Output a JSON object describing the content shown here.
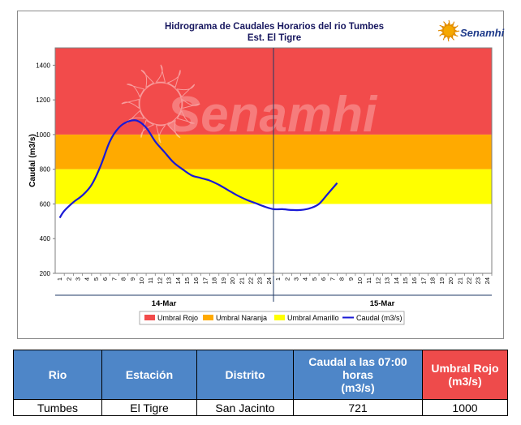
{
  "chart_data": {
    "type": "line",
    "title": "Hidrograma de Caudales Horarios del rio Tumbes",
    "subtitle": "Est. El Tigre",
    "ylabel": "Caudal  (m3/s)",
    "xlabel": "",
    "ylim": [
      200,
      1500
    ],
    "yticks": [
      "200",
      "400",
      "600",
      "800",
      "1000",
      "1200",
      "1400"
    ],
    "x_hour_labels": [
      "1",
      "2",
      "3",
      "4",
      "5",
      "6",
      "7",
      "8",
      "9",
      "10",
      "11",
      "12",
      "13",
      "14",
      "15",
      "16",
      "17",
      "18",
      "19",
      "20",
      "21",
      "22",
      "23",
      "24",
      "1",
      "2",
      "3",
      "4",
      "5",
      "6",
      "7",
      "8",
      "9",
      "10",
      "11",
      "12",
      "13",
      "14",
      "15",
      "16",
      "17",
      "18",
      "19",
      "20",
      "21",
      "22",
      "23",
      "24"
    ],
    "day_labels": [
      "14-Mar",
      "15-Mar"
    ],
    "thresholds": [
      {
        "name": "Umbral Rojo",
        "from": 1000,
        "to": 1500,
        "color": "#f24b4b"
      },
      {
        "name": "Umbral Naranja",
        "from": 800,
        "to": 1000,
        "color": "#ffaa00"
      },
      {
        "name": "Umbral Amarillo",
        "from": 600,
        "to": 800,
        "color": "#ffff00"
      }
    ],
    "series": [
      {
        "name": "Caudal (m3/s)",
        "color": "#1a1ad6",
        "x": [
          0.5,
          1,
          2,
          3,
          4,
          5,
          6,
          7,
          8,
          9,
          10,
          11,
          12,
          13,
          14,
          15,
          16,
          17,
          18,
          19,
          20,
          21,
          22,
          23,
          24,
          25,
          26,
          27,
          28,
          29,
          30,
          31
        ],
        "values": [
          520,
          560,
          610,
          650,
          710,
          820,
          960,
          1040,
          1075,
          1080,
          1040,
          960,
          900,
          840,
          800,
          765,
          750,
          735,
          710,
          680,
          650,
          625,
          605,
          585,
          570,
          570,
          565,
          565,
          575,
          600,
          660,
          721
        ]
      }
    ],
    "legend_entries": [
      "Umbral Rojo",
      "Umbral Naranja",
      "Umbral Amarillo",
      "Caudal (m3/s)"
    ],
    "legend_position": "bottom",
    "watermark": "Senamhi",
    "logo_text": "Senamhi"
  },
  "table": {
    "headers": [
      "Rio",
      "Estación",
      "Distrito",
      "Caudal a las 07:00 horas",
      "Umbral Rojo"
    ],
    "header_units": [
      "",
      "",
      "",
      "(m3/s)",
      "(m3/s)"
    ],
    "row": [
      "Tumbes",
      "El Tigre",
      "San Jacinto",
      "721",
      "1000"
    ]
  }
}
